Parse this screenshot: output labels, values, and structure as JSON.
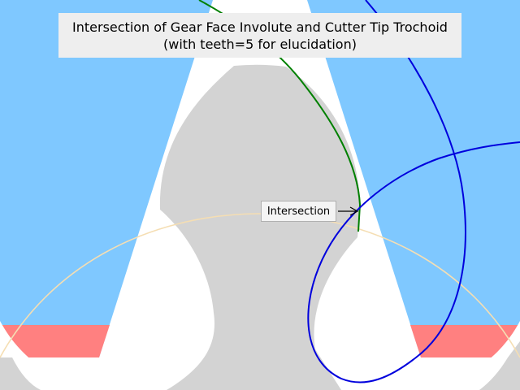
{
  "title": {
    "line1": "Intersection of Gear Face Involute and Cutter Tip Trochoid",
    "line2": "(with teeth=5 for elucidation)"
  },
  "annotation": {
    "label": "Intersection"
  },
  "colors": {
    "cutter_region": "#7fc8ff",
    "cutter_tip_band": "#ff8080",
    "gear_tooth": "#d3d3d3",
    "involute": "#008000",
    "trochoid": "#0000dd",
    "pitch_circle": "#f5deb3",
    "background": "#ffffff"
  },
  "icons": {
    "pointer": "arrow-right-icon"
  }
}
